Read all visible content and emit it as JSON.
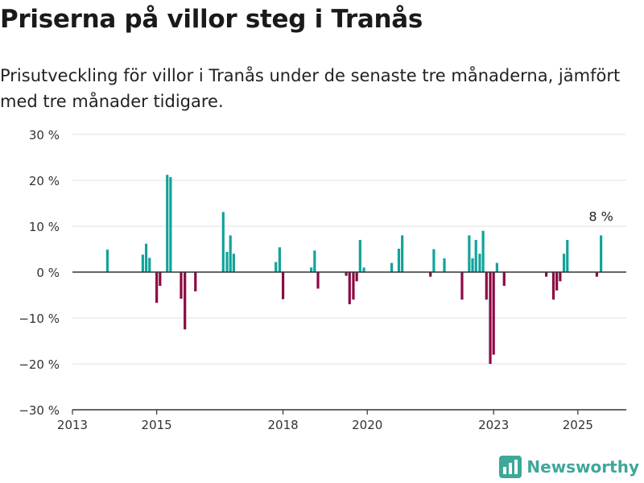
{
  "title": "Priserna på villor steg i Tranås",
  "subtitle": "Prisutveckling för villor i Tranås under de senaste tre månaderna, jämfört med tre månader tidigare.",
  "brand": {
    "name": "Newsworthy"
  },
  "colors": {
    "positive": "#12a39a",
    "negative": "#8b0a43",
    "grid": "#e0e0e0",
    "axis": "#333333"
  },
  "chart_data": {
    "type": "bar",
    "xlim": [
      2013.0,
      2026.15
    ],
    "ylim": [
      -30,
      30
    ],
    "yticks": [
      30,
      20,
      10,
      0,
      -10,
      -20,
      -30
    ],
    "ytick_labels": [
      "30 %",
      "20 %",
      "10 %",
      "0 %",
      "−10 %",
      "−20 %",
      "−30 %"
    ],
    "xticks": [
      2013,
      2015,
      2018,
      2020,
      2023,
      2025
    ],
    "xtick_labels": [
      "2013",
      "2015",
      "2018",
      "2020",
      "2023",
      "2025"
    ],
    "annotation": {
      "x": 2025.55,
      "y": 8,
      "text": "8 %"
    },
    "x": [
      2013.83,
      2014.67,
      2014.75,
      2014.83,
      2015.0,
      2015.08,
      2015.25,
      2015.33,
      2015.58,
      2015.67,
      2015.92,
      2016.58,
      2016.67,
      2016.75,
      2016.83,
      2017.83,
      2017.92,
      2018.0,
      2018.67,
      2018.75,
      2018.83,
      2019.5,
      2019.58,
      2019.67,
      2019.75,
      2019.83,
      2019.92,
      2020.58,
      2020.75,
      2020.83,
      2021.5,
      2021.58,
      2021.83,
      2022.25,
      2022.42,
      2022.5,
      2022.58,
      2022.67,
      2022.75,
      2022.83,
      2022.92,
      2023.0,
      2023.08,
      2023.25,
      2024.25,
      2024.42,
      2024.5,
      2024.58,
      2024.67,
      2024.75,
      2024.83,
      2025.45,
      2025.55
    ],
    "values": [
      4.9,
      3.8,
      6.2,
      3.1,
      -6.7,
      -3.0,
      21.2,
      20.7,
      -5.8,
      -12.5,
      -4.2,
      13.1,
      4.4,
      8.0,
      4.0,
      2.2,
      5.4,
      -5.9,
      1.0,
      4.7,
      -3.6,
      -0.8,
      -7.0,
      -6.0,
      -2.0,
      7.0,
      1.0,
      2.0,
      5.1,
      8.0,
      -1.0,
      5.0,
      3.0,
      -6.0,
      8.0,
      3.0,
      7.0,
      4.0,
      9.0,
      -6.0,
      -20.0,
      -18.0,
      2.0,
      -3.0,
      -1.0,
      -6.0,
      -4.0,
      -2.0,
      4.0,
      7.0,
      0.0,
      -1.0,
      8.0
    ]
  }
}
